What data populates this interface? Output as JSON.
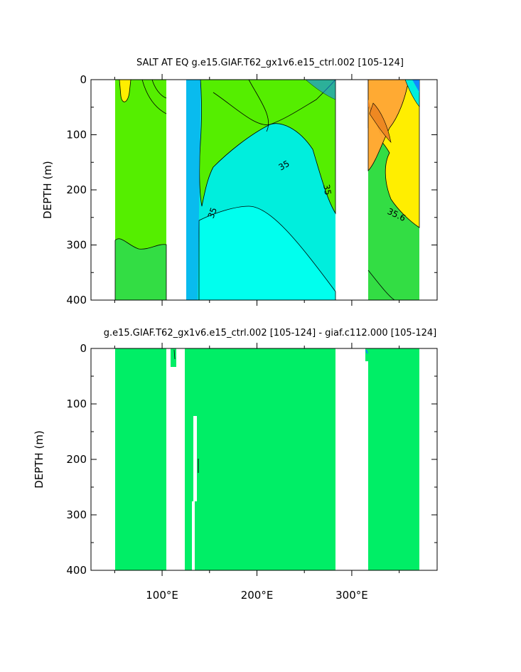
{
  "chart_data": [
    {
      "type": "heatmap",
      "title": "SALT AT EQ g.e15.GIAF.T62_gx1v6.e15_ctrl.002 [105-124]",
      "ylabel": "DEPTH (m)",
      "y_ticks": [
        0,
        100,
        200,
        300,
        400
      ],
      "x_ticks": [
        "100°E",
        "200°E",
        "300°E"
      ],
      "xlim": [
        25,
        390
      ],
      "ylim": [
        0,
        400
      ],
      "y_reversed": true,
      "contour_labels": [
        "35",
        "35",
        "35",
        "35.6"
      ],
      "colors": {
        "green": "#55ee00",
        "mid_green": "#33dd44",
        "cyan": "#00eedd",
        "light_cyan": "#00ffee",
        "blue": "#1188ff",
        "yellow": "#ffee00",
        "orange": "#ffaa33",
        "deep_orange": "#ee8822"
      }
    },
    {
      "type": "heatmap",
      "title": "g.e15.GIAF.T62_gx1v6.e15_ctrl.002 [105-124] - giaf.c112.000 [105-124]",
      "ylabel": "DEPTH (m)",
      "y_ticks": [
        0,
        100,
        200,
        300,
        400
      ],
      "x_ticks": [
        "100°E",
        "200°E",
        "300°E"
      ],
      "xlim": [
        25,
        390
      ],
      "ylim": [
        0,
        400
      ],
      "y_reversed": true,
      "fill_color": "#00ee66"
    }
  ]
}
